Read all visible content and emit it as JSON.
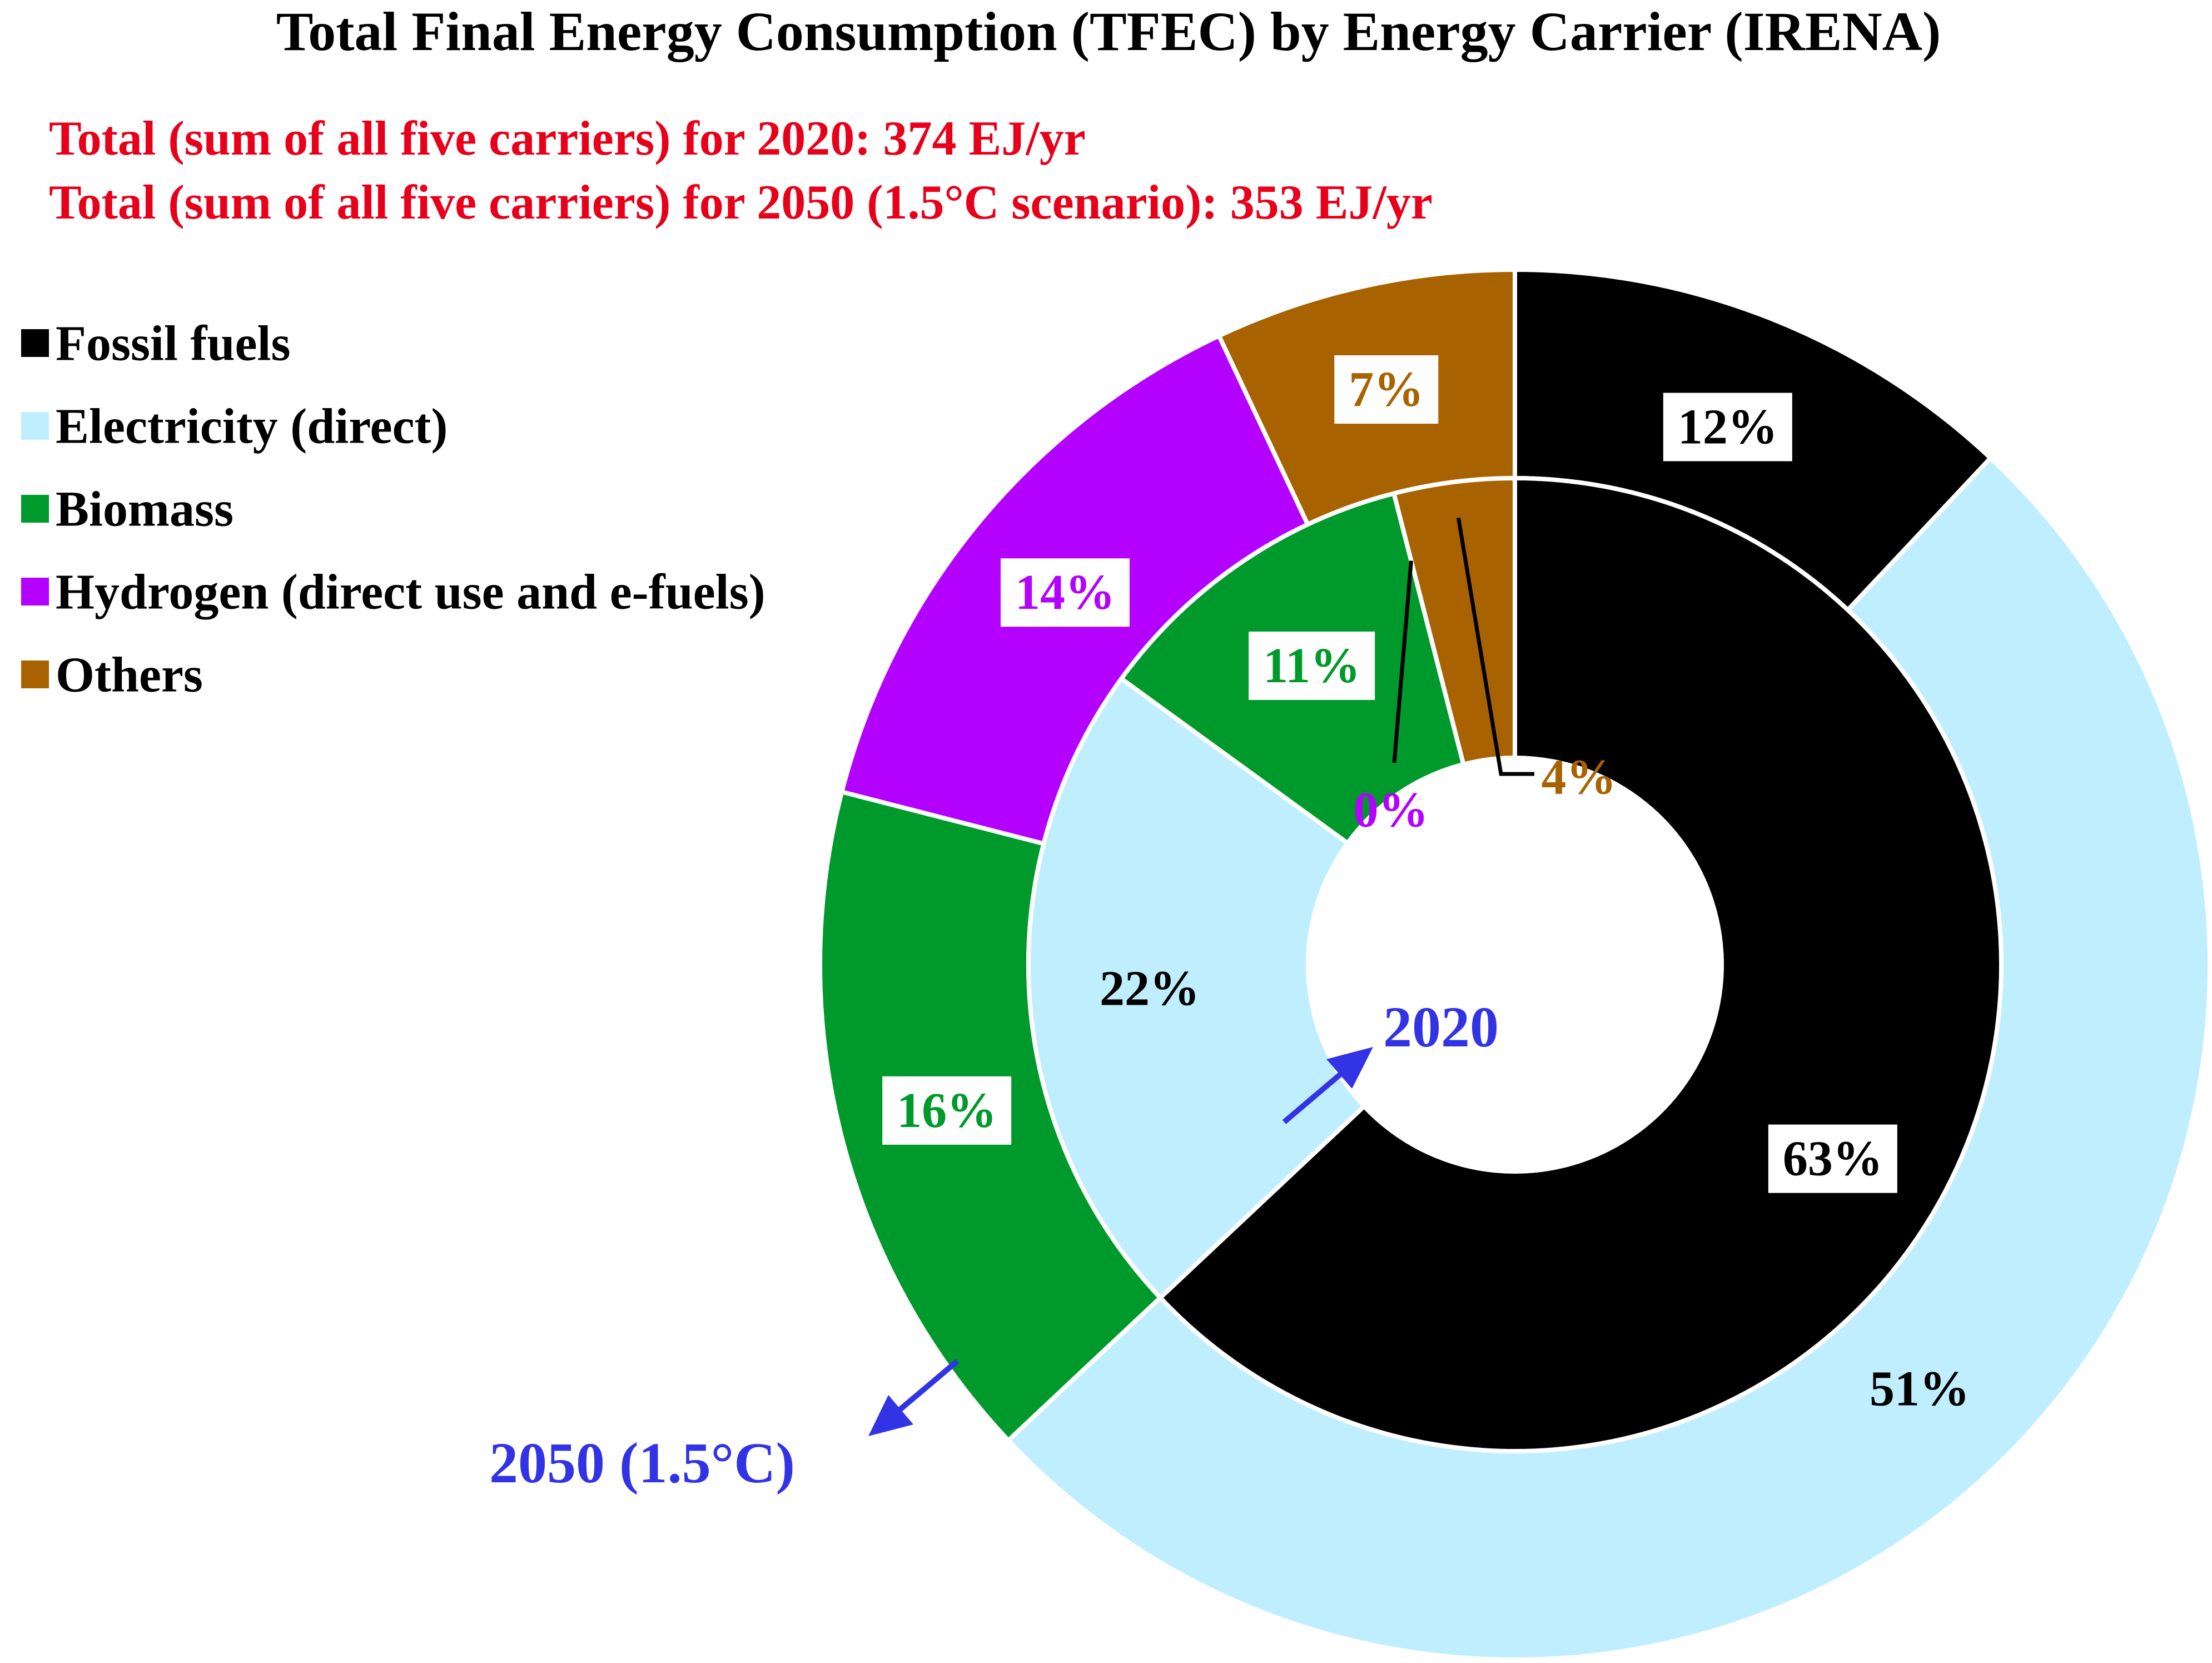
{
  "chart_data": {
    "type": "donut",
    "title": "Total Final Energy Consumption (TFEC) by Energy Carrier (IRENA)",
    "subtitles": [
      "Total (sum of all five carriers) for 2020: 374 EJ/yr",
      "Total (sum of all five carriers) for 2050 (1.5°C scenario): 353 EJ/yr"
    ],
    "categories": [
      "Fossil fuels",
      "Electricity (direct)",
      "Biomass",
      "Hydrogen (direct use and e-fuels)",
      "Others"
    ],
    "colors": [
      "#000000",
      "#bfeeff",
      "#00992b",
      "#b300ff",
      "#a86300"
    ],
    "series": [
      {
        "name": "2020",
        "ring": "inner",
        "values": [
          63,
          22,
          11,
          0,
          4
        ],
        "labels": [
          "63%",
          "22%",
          "11%",
          "0%",
          "4%"
        ]
      },
      {
        "name": "2050 (1.5°C)",
        "ring": "outer",
        "values": [
          12,
          51,
          16,
          14,
          7
        ],
        "labels": [
          "12%",
          "51%",
          "16%",
          "14%",
          "7%"
        ]
      }
    ],
    "totals": {
      "2020": 374,
      "2050": 353,
      "unit": "EJ/yr"
    },
    "ring_labels": {
      "inner": "2020",
      "outer": "2050 (1.5°C)"
    },
    "legend_position": "top-left"
  },
  "colors": {
    "title": "#000000",
    "subtitle": "#e8001a",
    "annotation": "#3333e6"
  }
}
